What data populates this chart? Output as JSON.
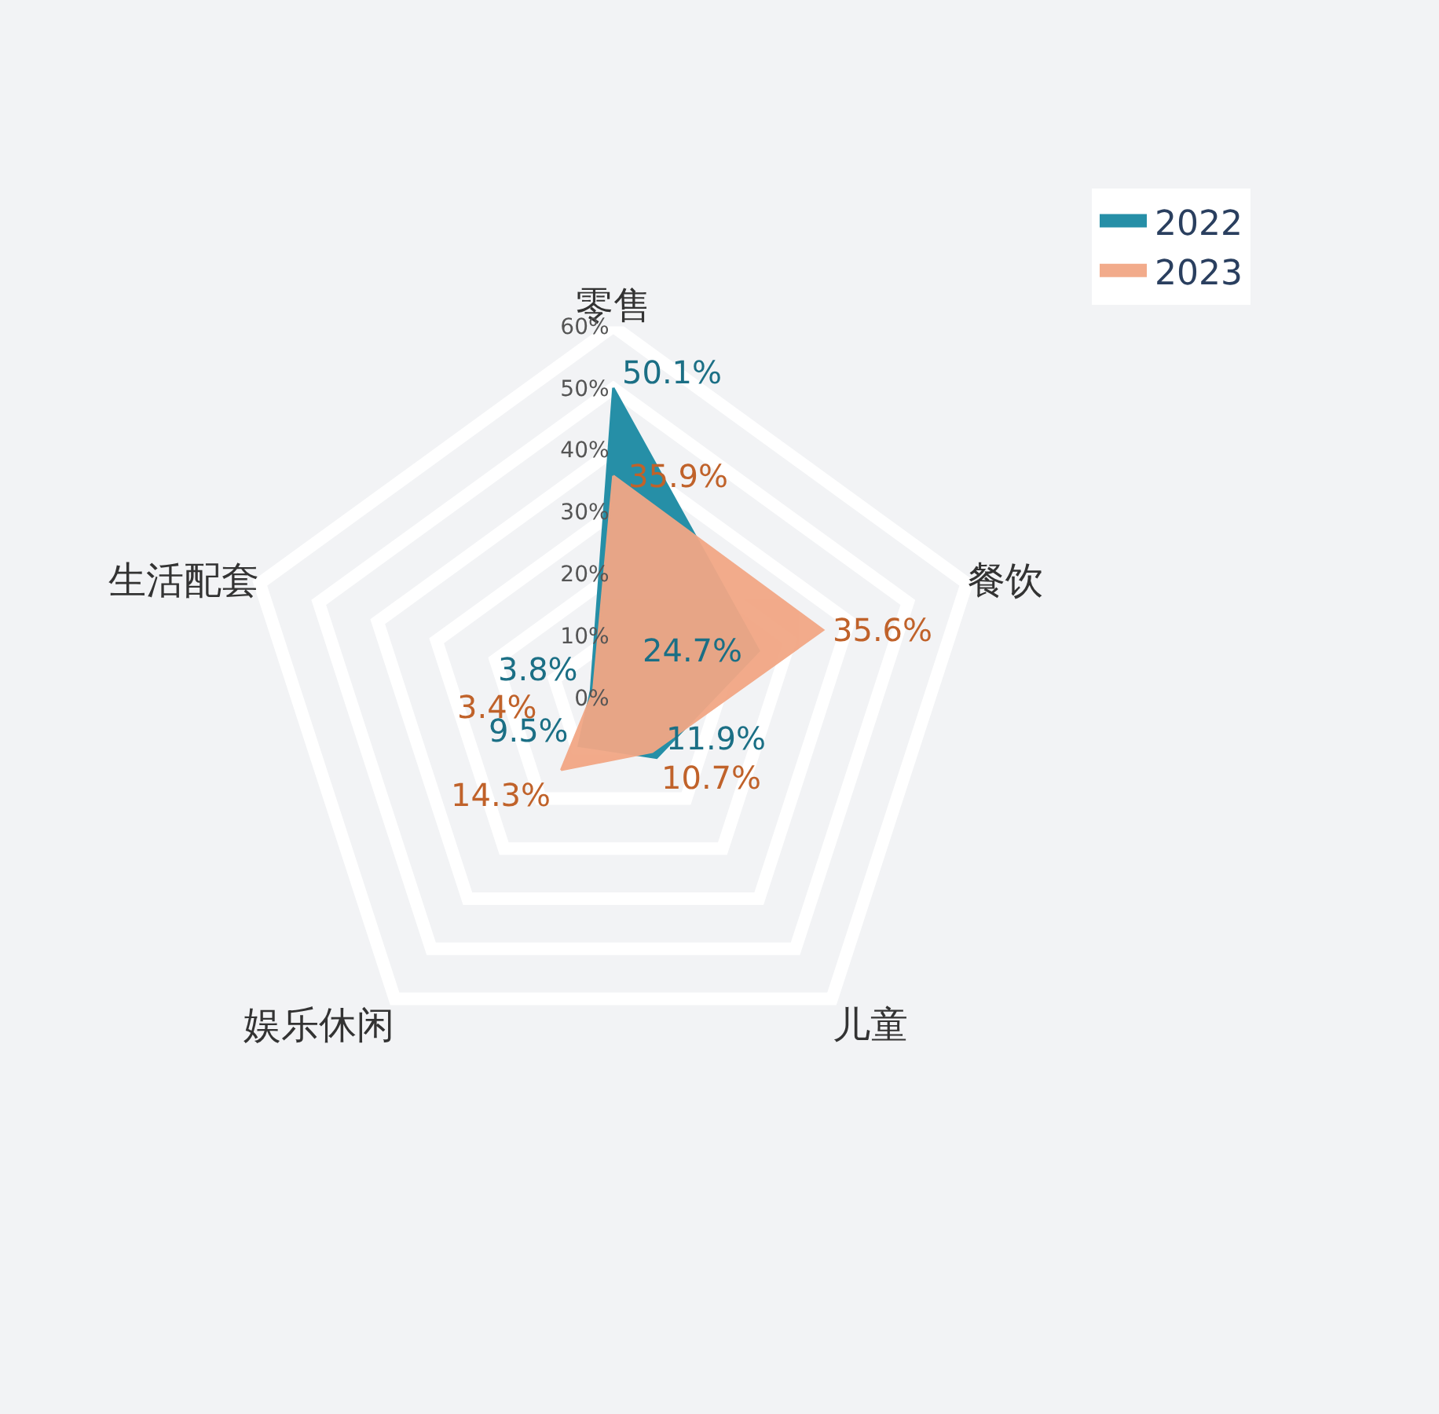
{
  "chart_data": {
    "type": "radar",
    "categories": [
      "零售",
      "餐饮",
      "儿童",
      "娱乐休闲",
      "生活配套"
    ],
    "series": [
      {
        "name": "2022",
        "color": "#1b8aa3",
        "values": [
          50.1,
          24.7,
          11.9,
          9.5,
          3.8
        ],
        "value_labels": [
          "50.1%",
          "24.7%",
          "11.9%",
          "9.5%",
          "3.8%"
        ]
      },
      {
        "name": "2023",
        "color": "#f2a785",
        "values": [
          35.9,
          35.6,
          10.7,
          14.3,
          3.4
        ],
        "value_labels": [
          "35.9%",
          "35.6%",
          "10.7%",
          "14.3%",
          "3.4%"
        ]
      }
    ],
    "ylim": [
      0,
      60
    ],
    "yticks": [
      {
        "value": 0,
        "label": "0%"
      },
      {
        "value": 10,
        "label": "10%"
      },
      {
        "value": 20,
        "label": "20%"
      },
      {
        "value": 30,
        "label": "30%"
      },
      {
        "value": 40,
        "label": "40%"
      },
      {
        "value": 50,
        "label": "50%"
      },
      {
        "value": 60,
        "label": "60%"
      }
    ],
    "grid": true,
    "legend": "top right"
  }
}
